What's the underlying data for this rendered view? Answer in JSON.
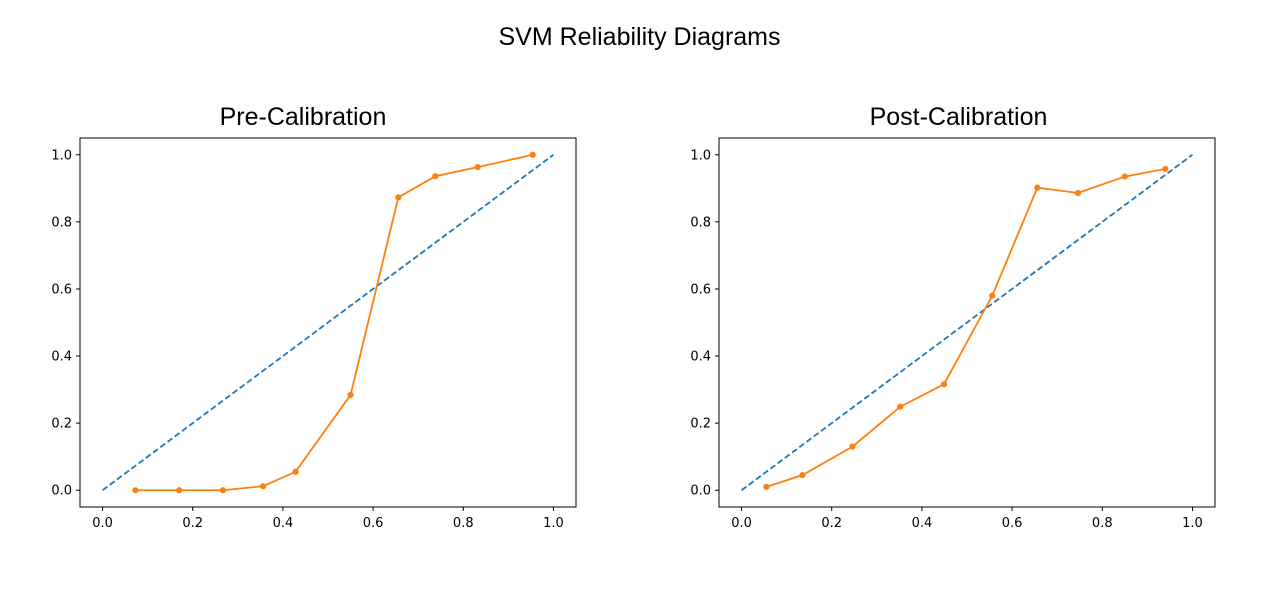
{
  "figure": {
    "suptitle": "SVM Reliability Diagrams"
  },
  "chart_data": [
    {
      "type": "line",
      "title": "Pre-Calibration",
      "xlabel": "",
      "ylabel": "",
      "xlim": [
        -0.05,
        1.05
      ],
      "ylim": [
        -0.05,
        1.05
      ],
      "xticks": [
        "0.0",
        "0.2",
        "0.4",
        "0.6",
        "0.8",
        "1.0"
      ],
      "yticks": [
        "0.0",
        "0.2",
        "0.4",
        "0.6",
        "0.8",
        "1.0"
      ],
      "grid": false,
      "series": [
        {
          "style": "dashed",
          "color": "#1f77b4",
          "x": [
            0,
            1
          ],
          "y": [
            0,
            1
          ]
        },
        {
          "style": "solid-markers",
          "color": "#ff7f0e",
          "x": [
            0.073,
            0.17,
            0.267,
            0.356,
            0.428,
            0.55,
            0.656,
            0.738,
            0.832,
            0.954
          ],
          "y": [
            0.0,
            0.0,
            0.0,
            0.012,
            0.055,
            0.284,
            0.873,
            0.936,
            0.963,
            1.0
          ]
        }
      ]
    },
    {
      "type": "line",
      "title": "Post-Calibration",
      "xlabel": "",
      "ylabel": "",
      "xlim": [
        -0.05,
        1.05
      ],
      "ylim": [
        -0.05,
        1.05
      ],
      "xticks": [
        "0.0",
        "0.2",
        "0.4",
        "0.6",
        "0.8",
        "1.0"
      ],
      "yticks": [
        "0.0",
        "0.2",
        "0.4",
        "0.6",
        "0.8",
        "1.0"
      ],
      "grid": false,
      "series": [
        {
          "style": "dashed",
          "color": "#1f77b4",
          "x": [
            0,
            1
          ],
          "y": [
            0,
            1
          ]
        },
        {
          "style": "solid-markers",
          "color": "#ff7f0e",
          "x": [
            0.055,
            0.135,
            0.246,
            0.352,
            0.449,
            0.556,
            0.656,
            0.746,
            0.85,
            0.94
          ],
          "y": [
            0.01,
            0.045,
            0.13,
            0.249,
            0.316,
            0.58,
            0.902,
            0.886,
            0.935,
            0.958
          ]
        }
      ]
    }
  ]
}
